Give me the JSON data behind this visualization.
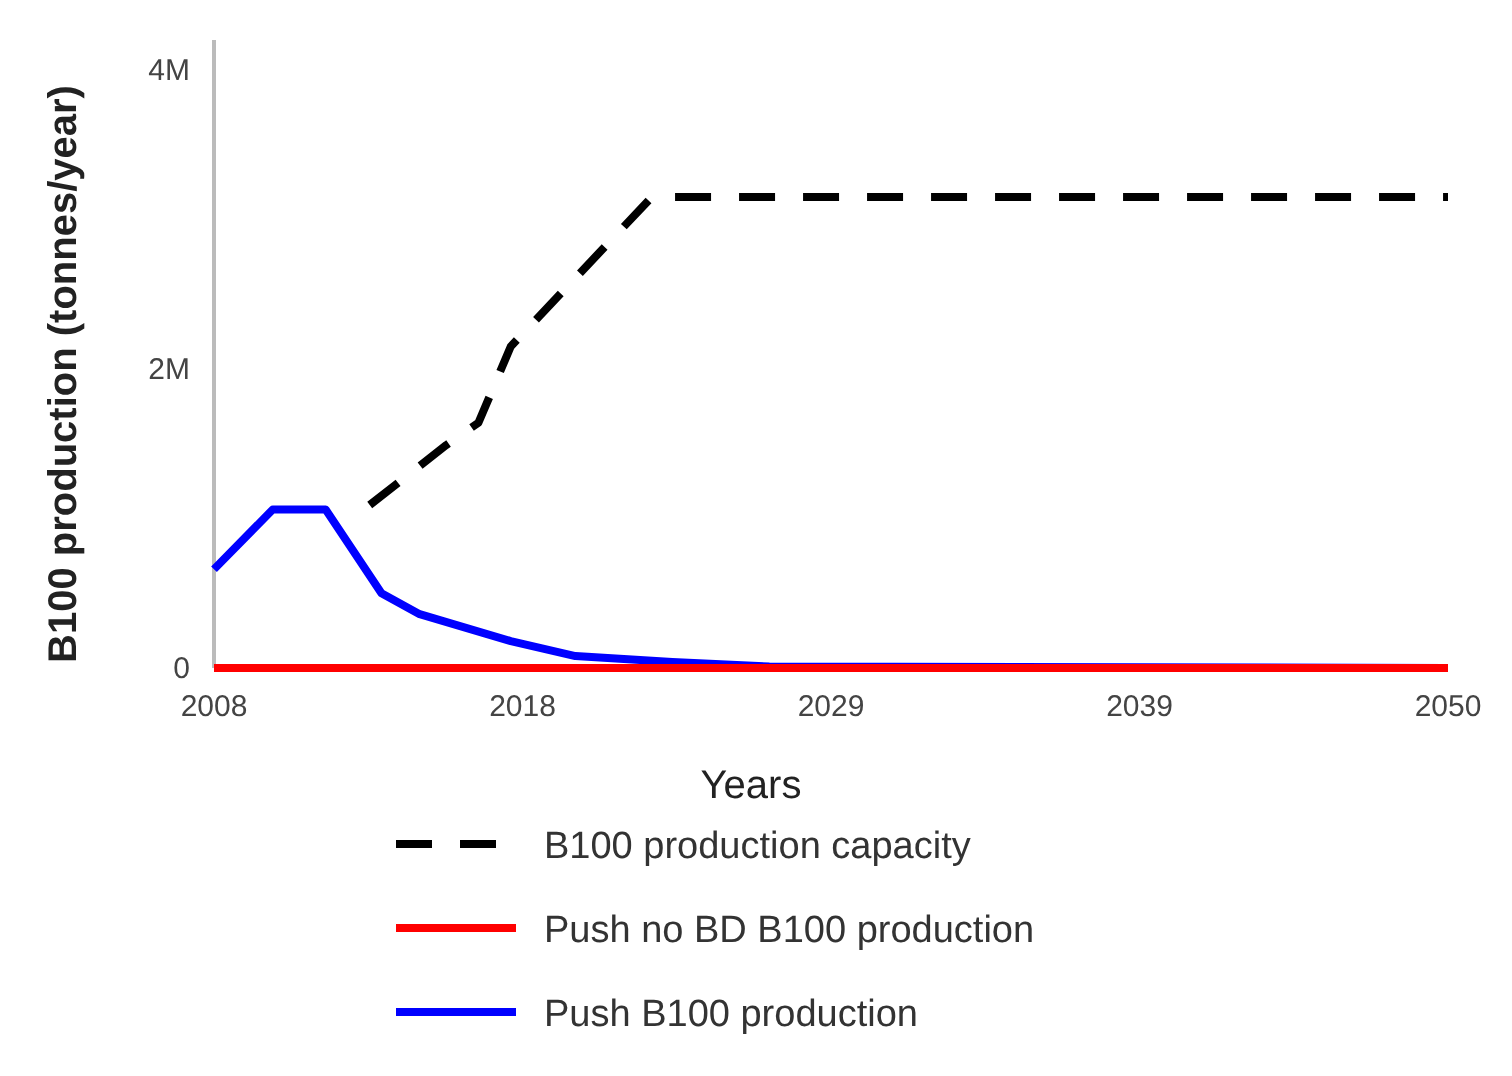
{
  "chart_data": {
    "type": "line",
    "xlabel": "Years",
    "ylabel": "B100 production (tonnes/year)",
    "xlim": [
      2008,
      2050
    ],
    "xticks": [
      2008,
      {
        "value": 2018.5,
        "label": "2018"
      },
      2029,
      {
        "value": 2039.5,
        "label": "2039"
      },
      2050
    ],
    "ylim": [
      0,
      4200000
    ],
    "yticks": [
      0,
      {
        "value": 2000000,
        "label": "2M"
      },
      {
        "value": 4000000,
        "label": "4M"
      }
    ],
    "grid": false,
    "legend": "bottom",
    "series": [
      {
        "name": "B100 production capacity",
        "color": "#000000",
        "line_style": "dashed",
        "x": [
          2013.3,
          2015.9,
          2017.0,
          2018.1,
          2022.9,
          2050
        ],
        "values": [
          1090000,
          1490000,
          1640000,
          2150000,
          3150000,
          3150000
        ]
      },
      {
        "name": "Push no BD B100 production",
        "color": "#ff0000",
        "line_style": "solid",
        "x": [
          2008,
          2050
        ],
        "values": [
          0,
          0
        ]
      },
      {
        "name": "Push B100 production",
        "color": "#0000ff",
        "line_style": "solid",
        "x": [
          2008,
          2010.0,
          2011.8,
          2013.7,
          2015.0,
          2018.1,
          2020.3,
          2023.6,
          2026.9,
          2050
        ],
        "values": [
          660000,
          1060000,
          1060000,
          500000,
          360000,
          180000,
          80000,
          40000,
          10000,
          0
        ]
      }
    ]
  }
}
